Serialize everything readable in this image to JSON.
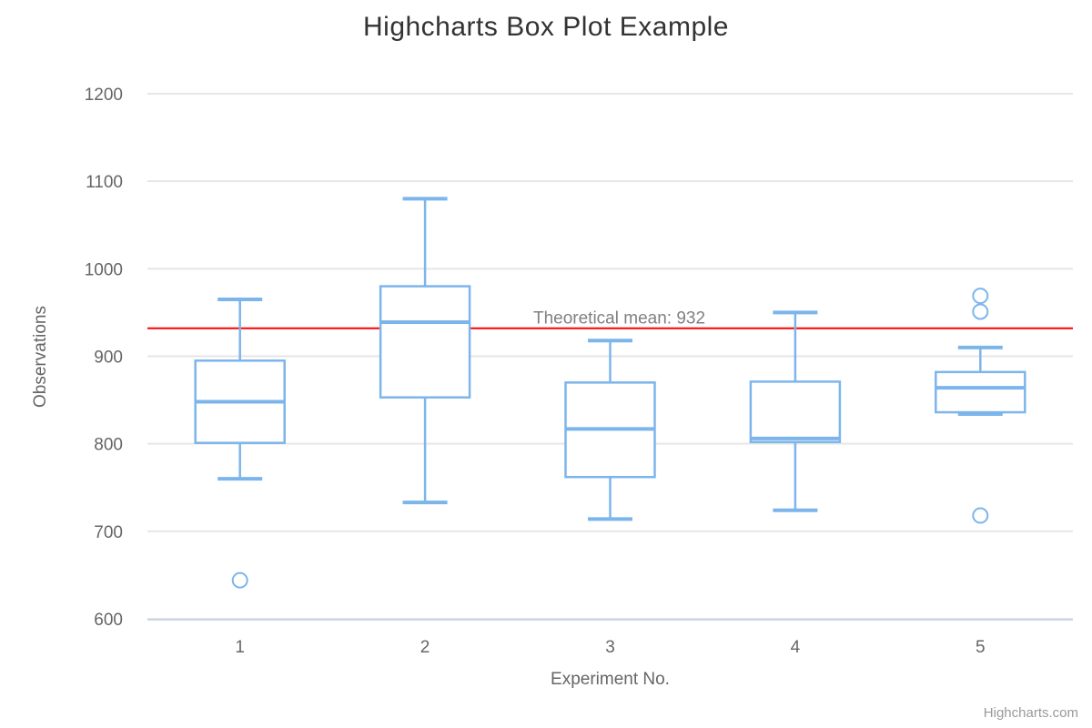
{
  "chart_data": {
    "type": "boxplot",
    "title": "Highcharts Box Plot Example",
    "xlabel": "Experiment No.",
    "ylabel": "Observations",
    "categories": [
      "1",
      "2",
      "3",
      "4",
      "5"
    ],
    "ylim": [
      600,
      1200
    ],
    "yticks": [
      600,
      700,
      800,
      900,
      1000,
      1100,
      1200
    ],
    "grid": true,
    "legend": "none",
    "series": [
      {
        "name": "Observations",
        "points": [
          {
            "category": "1",
            "low": 760,
            "q1": 801,
            "median": 848,
            "q3": 895,
            "high": 965
          },
          {
            "category": "2",
            "low": 733,
            "q1": 853,
            "median": 939,
            "q3": 980,
            "high": 1080
          },
          {
            "category": "3",
            "low": 714,
            "q1": 762,
            "median": 817,
            "q3": 870,
            "high": 918
          },
          {
            "category": "4",
            "low": 724,
            "q1": 802,
            "median": 806,
            "q3": 871,
            "high": 950
          },
          {
            "category": "5",
            "low": 834,
            "q1": 836,
            "median": 864,
            "q3": 882,
            "high": 910
          }
        ]
      }
    ],
    "outliers": [
      {
        "category": "1",
        "value": 644
      },
      {
        "category": "5",
        "value": 718
      },
      {
        "category": "5",
        "value": 951
      },
      {
        "category": "5",
        "value": 969
      }
    ],
    "plot_line": {
      "value": 932,
      "label": "Theoretical mean: 932",
      "color": "#ff0000"
    }
  },
  "colors": {
    "series": "#7cb5ec",
    "box_fill": "#ffffff",
    "grid": "#e6e6e6",
    "axis_line": "#ccd6eb",
    "tick_text": "#666666",
    "title_text": "#333333",
    "plot_line": "#ff0000",
    "plot_line_label": "#808080",
    "credits_text": "#999999"
  },
  "credits": {
    "label": "Highcharts.com"
  }
}
